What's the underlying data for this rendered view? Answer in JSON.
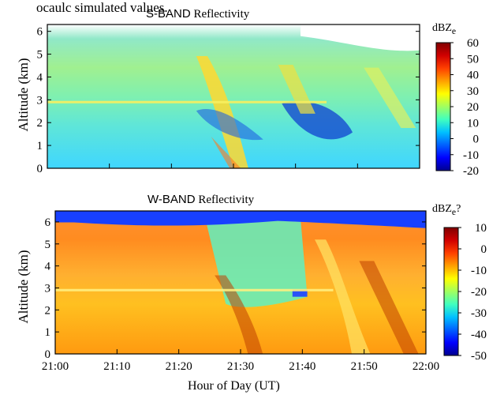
{
  "header_text": "ocaulc simulated values.",
  "chart_data": [
    {
      "type": "heatmap",
      "title_band": "S-BAND",
      "title_rest": "Reflectivity",
      "ylabel": "Altitude (km)",
      "yticks": [
        0,
        1,
        2,
        3,
        4,
        5,
        6
      ],
      "ylim": [
        0,
        6.3
      ],
      "xlim": [
        "21:00",
        "22:00"
      ],
      "colorbar": {
        "unit": "dBZ",
        "unit_sub": "e",
        "unit_suffix": "",
        "ticks": [
          60,
          50,
          40,
          30,
          20,
          10,
          0,
          -10,
          -20
        ],
        "range": [
          -20,
          60
        ]
      },
      "features": {
        "bright_band_altitude_km": 2.9
      }
    },
    {
      "type": "heatmap",
      "title_band": "W-BAND",
      "title_rest": "Reflectivity",
      "ylabel": "Altitude (km)",
      "yticks": [
        0,
        1,
        2,
        3,
        4,
        5,
        6
      ],
      "ylim": [
        0,
        6.5
      ],
      "xlabel": "Hour of Day (UT)",
      "xticks": [
        "21:00",
        "21:10",
        "21:20",
        "21:30",
        "21:40",
        "21:50",
        "22:00"
      ],
      "colorbar": {
        "unit": "dBZ",
        "unit_sub": "e",
        "unit_suffix": "?",
        "ticks": [
          10,
          0,
          -10,
          -20,
          -30,
          -40,
          -50
        ],
        "range": [
          -50,
          10
        ]
      },
      "features": {
        "bright_band_altitude_km": 2.9
      }
    }
  ]
}
